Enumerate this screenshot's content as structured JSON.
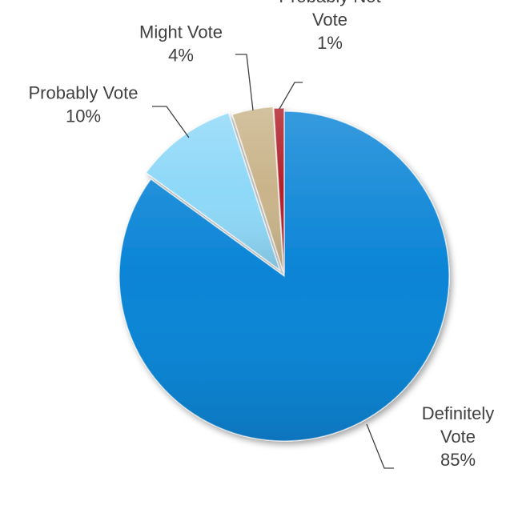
{
  "chart_data": {
    "type": "pie",
    "title": "",
    "start_angle_deg": 0,
    "direction": "clockwise",
    "slices": [
      {
        "name": "Definitely Vote",
        "label_lines": [
          "Definitely",
          "Vote"
        ],
        "value": 85,
        "value_label": "85%",
        "color": "#0A84D6"
      },
      {
        "name": "Probably Vote",
        "label_lines": [
          "Probably Vote"
        ],
        "value": 10,
        "value_label": "10%",
        "color": "#8ED8F8"
      },
      {
        "name": "Might Vote",
        "label_lines": [
          "Might Vote"
        ],
        "value": 4,
        "value_label": "4%",
        "color": "#C9B48A"
      },
      {
        "name": "Probably Not Vote",
        "label_lines": [
          "Probably Not",
          "Vote"
        ],
        "value": 1,
        "value_label": "1%",
        "color": "#B0202A"
      }
    ],
    "legend": "none",
    "data_labels": "outside-with-leader-lines"
  }
}
